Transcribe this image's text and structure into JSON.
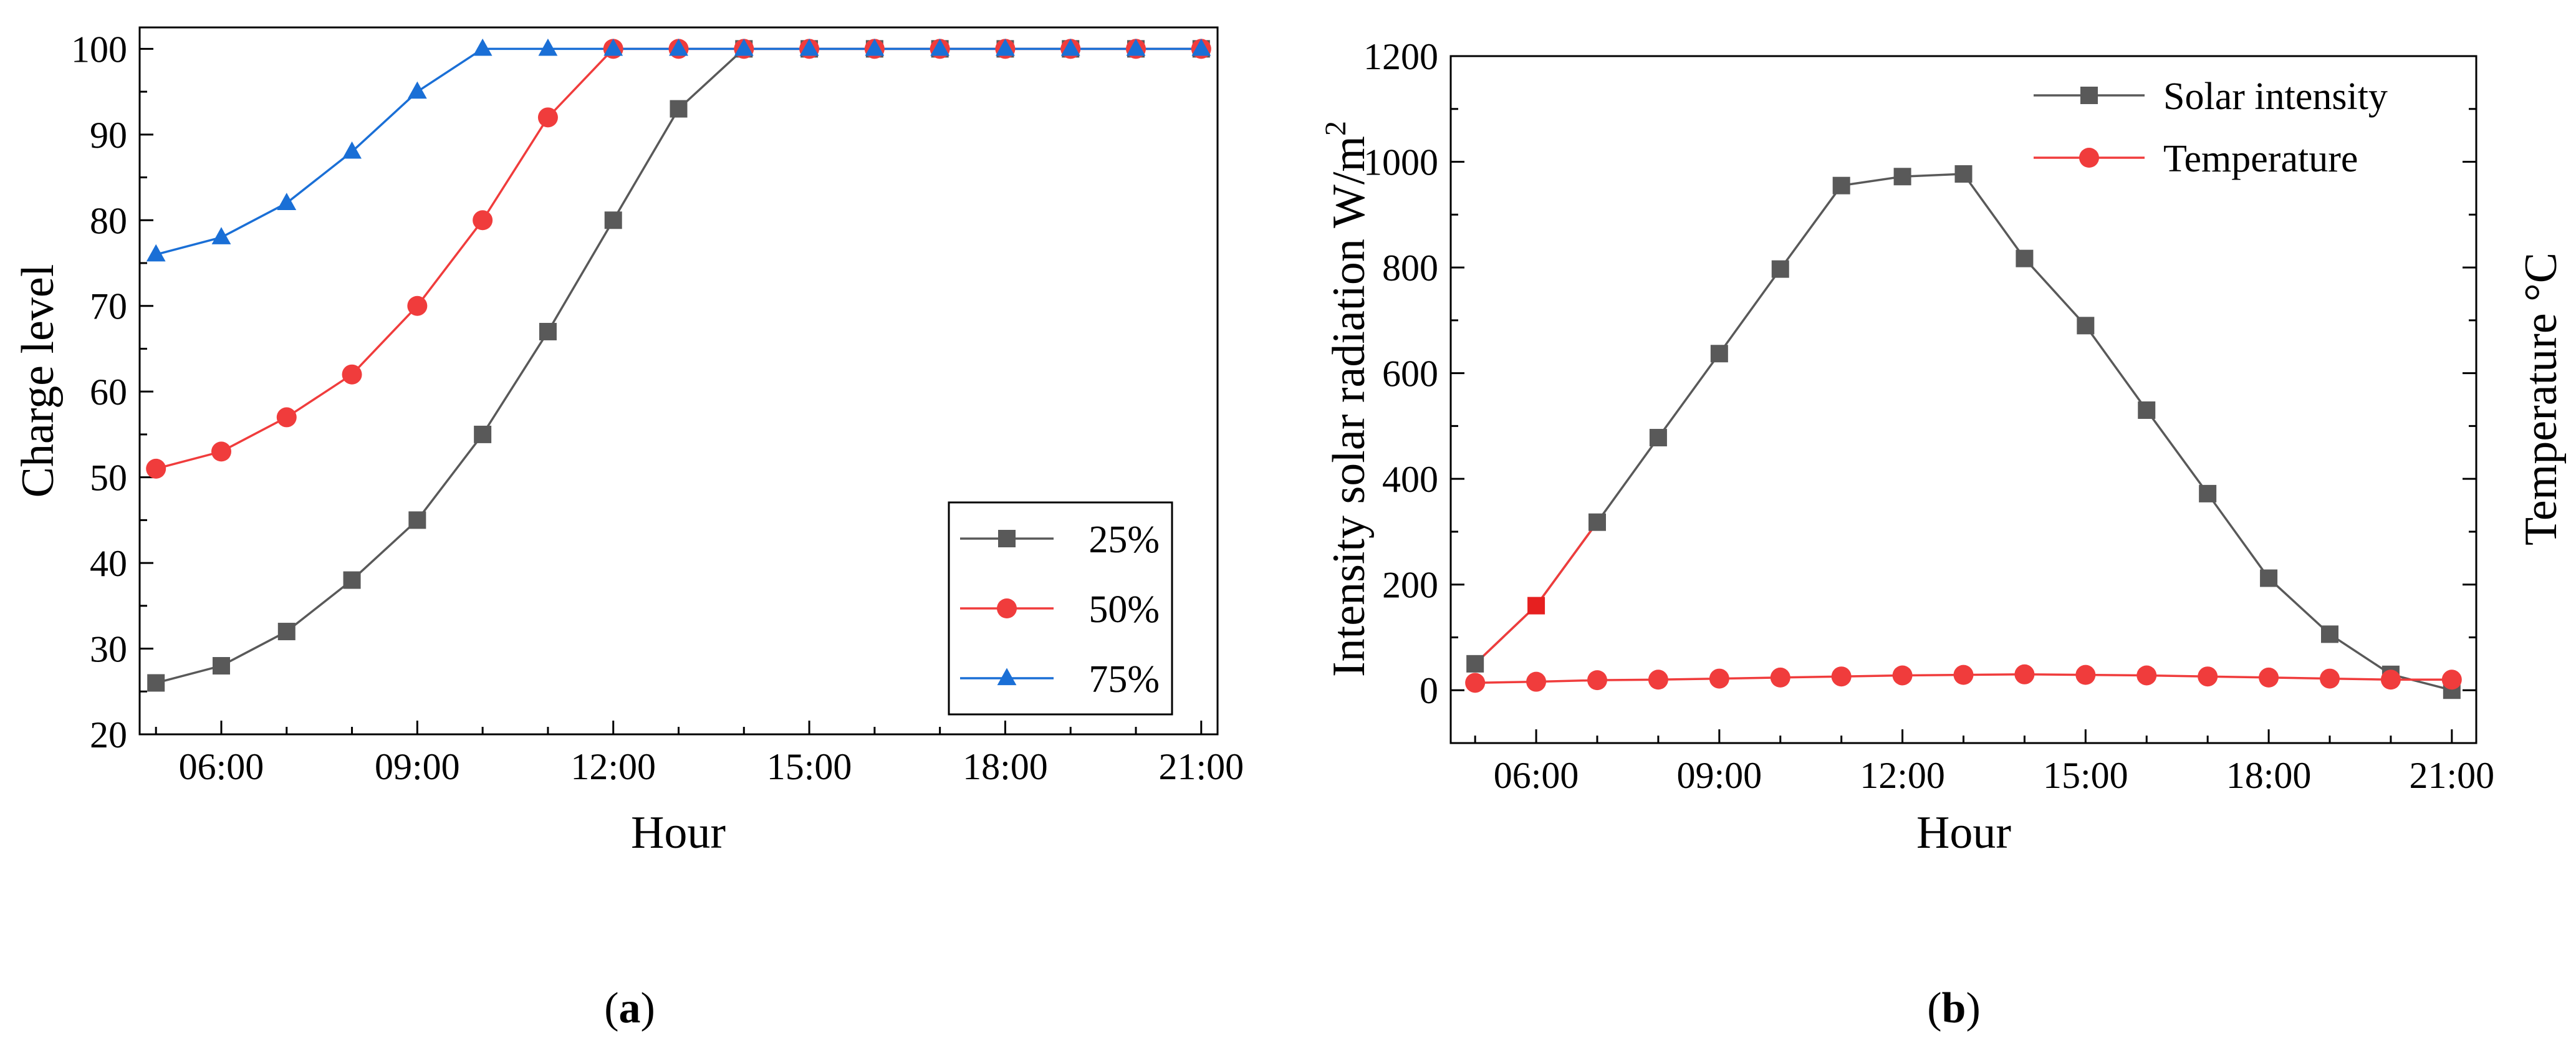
{
  "chart_data": [
    {
      "type": "line",
      "panel_label": "a",
      "xlabel": "Hour",
      "ylabel": "Charge level",
      "x": [
        5,
        6,
        7,
        8,
        9,
        10,
        11,
        12,
        13,
        14,
        15,
        16,
        17,
        18,
        19,
        20,
        21
      ],
      "xlim": [
        4.75,
        21.25
      ],
      "ylim": [
        20,
        102.5
      ],
      "xticks": [
        6,
        9,
        12,
        15,
        18,
        21
      ],
      "xtick_labels": [
        "06:00",
        "09:00",
        "12:00",
        "15:00",
        "18:00",
        "21:00"
      ],
      "yticks": [
        20,
        30,
        40,
        50,
        60,
        70,
        80,
        90,
        100
      ],
      "ytick_labels": [
        "20",
        "30",
        "40",
        "50",
        "60",
        "70",
        "80",
        "90",
        "100"
      ],
      "legend_position": "bottom-right",
      "series": [
        {
          "name": "25%",
          "color": "#595959",
          "marker": "square",
          "values": [
            26,
            28,
            32,
            38,
            45,
            55,
            67,
            80,
            93,
            100,
            100,
            100,
            100,
            100,
            100,
            100,
            100
          ]
        },
        {
          "name": "50%",
          "color": "#f03c3c",
          "marker": "circle",
          "values": [
            51,
            53,
            57,
            62,
            70,
            80,
            92,
            100,
            100,
            100,
            100,
            100,
            100,
            100,
            100,
            100,
            100
          ]
        },
        {
          "name": "75%",
          "color": "#1a6fd6",
          "marker": "triangle",
          "values": [
            76,
            78,
            82,
            88,
            95,
            100,
            100,
            100,
            100,
            100,
            100,
            100,
            100,
            100,
            100,
            100,
            100
          ]
        }
      ],
      "grid": false
    },
    {
      "type": "line",
      "panel_label": "b",
      "xlabel": "Hour",
      "ylabel": "Intensity solar radiation W/m",
      "ylabel_sup": "2",
      "y2label": "Temperature °C",
      "x": [
        5,
        6,
        7,
        8,
        9,
        10,
        11,
        12,
        13,
        14,
        15,
        16,
        17,
        18,
        19,
        20,
        21
      ],
      "xlim": [
        4.6,
        21.4
      ],
      "ylim": [
        -100,
        1200
      ],
      "xticks": [
        6,
        9,
        12,
        15,
        18,
        21
      ],
      "xtick_labels": [
        "06:00",
        "09:00",
        "12:00",
        "15:00",
        "18:00",
        "21:00"
      ],
      "yticks": [
        0,
        200,
        400,
        600,
        800,
        1000,
        1200
      ],
      "ytick_labels": [
        "0",
        "200",
        "400",
        "600",
        "800",
        "1000",
        "1200"
      ],
      "legend_position": "top-right",
      "series": [
        {
          "name": "Solar intensity",
          "color": "#595959",
          "marker": "square",
          "values": [
            50,
            160,
            318,
            478,
            637,
            797,
            955,
            972,
            977,
            817,
            690,
            530,
            372,
            212,
            106,
            30,
            0
          ]
        },
        {
          "name": "Temperature",
          "color": "#f03c3c",
          "marker": "circle",
          "values": [
            14,
            16,
            19,
            20,
            22,
            24,
            26,
            28,
            29,
            30,
            29,
            28,
            26,
            24,
            22,
            20,
            20
          ]
        }
      ],
      "grid": false
    }
  ]
}
